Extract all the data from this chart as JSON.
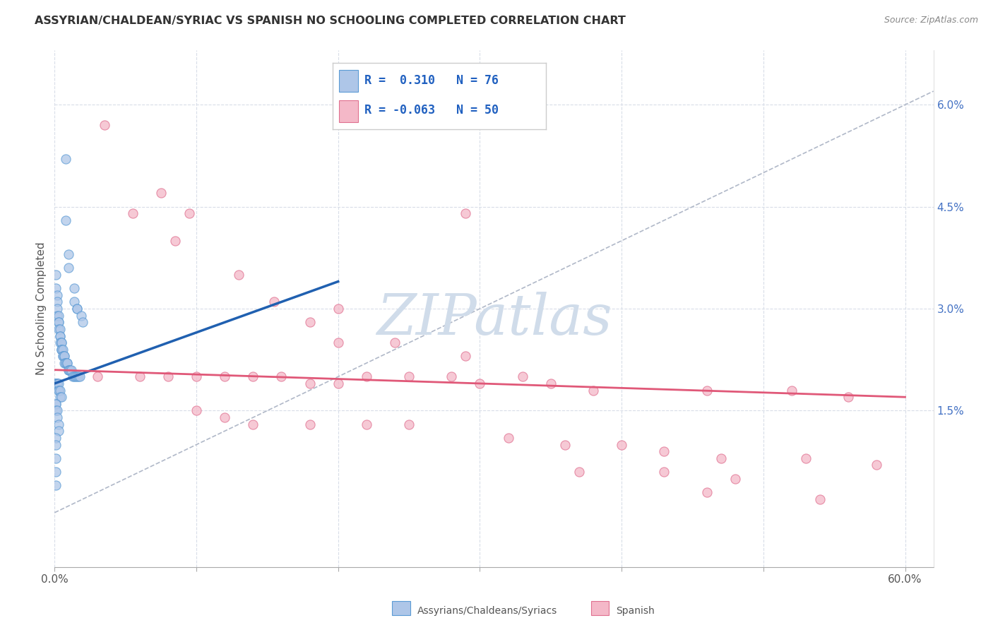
{
  "title": "ASSYRIAN/CHALDEAN/SYRIAC VS SPANISH NO SCHOOLING COMPLETED CORRELATION CHART",
  "source": "Source: ZipAtlas.com",
  "ylabel": "No Schooling Completed",
  "right_yticks": [
    "6.0%",
    "4.5%",
    "3.0%",
    "1.5%"
  ],
  "right_ytick_vals": [
    0.06,
    0.045,
    0.03,
    0.015
  ],
  "xlim": [
    0.0,
    0.62
  ],
  "ylim": [
    -0.008,
    0.068
  ],
  "blue_fill": "#aec6e8",
  "blue_edge": "#5b9bd5",
  "blue_line": "#2060b0",
  "pink_fill": "#f4b8c8",
  "pink_edge": "#e07090",
  "pink_line": "#e05878",
  "diag_color": "#b0b8c8",
  "grid_color": "#d8dde8",
  "assyrian_points": [
    [
      0.008,
      0.052
    ],
    [
      0.008,
      0.043
    ],
    [
      0.01,
      0.038
    ],
    [
      0.01,
      0.036
    ],
    [
      0.014,
      0.033
    ],
    [
      0.014,
      0.031
    ],
    [
      0.016,
      0.03
    ],
    [
      0.016,
      0.03
    ],
    [
      0.019,
      0.029
    ],
    [
      0.02,
      0.028
    ],
    [
      0.001,
      0.035
    ],
    [
      0.001,
      0.033
    ],
    [
      0.002,
      0.032
    ],
    [
      0.002,
      0.031
    ],
    [
      0.002,
      0.03
    ],
    [
      0.002,
      0.029
    ],
    [
      0.003,
      0.029
    ],
    [
      0.003,
      0.028
    ],
    [
      0.003,
      0.028
    ],
    [
      0.003,
      0.027
    ],
    [
      0.004,
      0.027
    ],
    [
      0.004,
      0.026
    ],
    [
      0.004,
      0.026
    ],
    [
      0.004,
      0.025
    ],
    [
      0.005,
      0.025
    ],
    [
      0.005,
      0.025
    ],
    [
      0.005,
      0.024
    ],
    [
      0.005,
      0.024
    ],
    [
      0.005,
      0.024
    ],
    [
      0.006,
      0.024
    ],
    [
      0.006,
      0.023
    ],
    [
      0.006,
      0.023
    ],
    [
      0.007,
      0.023
    ],
    [
      0.007,
      0.023
    ],
    [
      0.007,
      0.022
    ],
    [
      0.008,
      0.022
    ],
    [
      0.008,
      0.022
    ],
    [
      0.009,
      0.022
    ],
    [
      0.009,
      0.022
    ],
    [
      0.01,
      0.021
    ],
    [
      0.01,
      0.021
    ],
    [
      0.011,
      0.021
    ],
    [
      0.011,
      0.021
    ],
    [
      0.012,
      0.021
    ],
    [
      0.013,
      0.02
    ],
    [
      0.014,
      0.02
    ],
    [
      0.015,
      0.02
    ],
    [
      0.016,
      0.02
    ],
    [
      0.017,
      0.02
    ],
    [
      0.018,
      0.02
    ],
    [
      0.001,
      0.019
    ],
    [
      0.001,
      0.019
    ],
    [
      0.001,
      0.019
    ],
    [
      0.001,
      0.019
    ],
    [
      0.002,
      0.019
    ],
    [
      0.002,
      0.019
    ],
    [
      0.002,
      0.019
    ],
    [
      0.002,
      0.019
    ],
    [
      0.003,
      0.019
    ],
    [
      0.003,
      0.018
    ],
    [
      0.003,
      0.018
    ],
    [
      0.004,
      0.018
    ],
    [
      0.004,
      0.017
    ],
    [
      0.005,
      0.017
    ],
    [
      0.001,
      0.016
    ],
    [
      0.001,
      0.016
    ],
    [
      0.001,
      0.015
    ],
    [
      0.002,
      0.015
    ],
    [
      0.002,
      0.014
    ],
    [
      0.003,
      0.013
    ],
    [
      0.003,
      0.012
    ],
    [
      0.001,
      0.011
    ],
    [
      0.001,
      0.01
    ],
    [
      0.001,
      0.008
    ],
    [
      0.001,
      0.006
    ],
    [
      0.001,
      0.004
    ]
  ],
  "spanish_points": [
    [
      0.035,
      0.057
    ],
    [
      0.075,
      0.047
    ],
    [
      0.055,
      0.044
    ],
    [
      0.095,
      0.044
    ],
    [
      0.085,
      0.04
    ],
    [
      0.29,
      0.044
    ],
    [
      0.13,
      0.035
    ],
    [
      0.155,
      0.031
    ],
    [
      0.2,
      0.03
    ],
    [
      0.18,
      0.028
    ],
    [
      0.2,
      0.025
    ],
    [
      0.24,
      0.025
    ],
    [
      0.29,
      0.023
    ],
    [
      0.22,
      0.02
    ],
    [
      0.25,
      0.02
    ],
    [
      0.28,
      0.02
    ],
    [
      0.33,
      0.02
    ],
    [
      0.03,
      0.02
    ],
    [
      0.06,
      0.02
    ],
    [
      0.08,
      0.02
    ],
    [
      0.1,
      0.02
    ],
    [
      0.12,
      0.02
    ],
    [
      0.14,
      0.02
    ],
    [
      0.16,
      0.02
    ],
    [
      0.18,
      0.019
    ],
    [
      0.2,
      0.019
    ],
    [
      0.3,
      0.019
    ],
    [
      0.35,
      0.019
    ],
    [
      0.38,
      0.018
    ],
    [
      0.46,
      0.018
    ],
    [
      0.52,
      0.018
    ],
    [
      0.56,
      0.017
    ],
    [
      0.1,
      0.015
    ],
    [
      0.12,
      0.014
    ],
    [
      0.14,
      0.013
    ],
    [
      0.18,
      0.013
    ],
    [
      0.22,
      0.013
    ],
    [
      0.25,
      0.013
    ],
    [
      0.32,
      0.011
    ],
    [
      0.36,
      0.01
    ],
    [
      0.4,
      0.01
    ],
    [
      0.43,
      0.009
    ],
    [
      0.47,
      0.008
    ],
    [
      0.53,
      0.008
    ],
    [
      0.58,
      0.007
    ],
    [
      0.37,
      0.006
    ],
    [
      0.43,
      0.006
    ],
    [
      0.48,
      0.005
    ],
    [
      0.46,
      0.003
    ],
    [
      0.54,
      0.002
    ]
  ],
  "blue_line_pts": [
    [
      0.0,
      0.019
    ],
    [
      0.2,
      0.034
    ]
  ],
  "pink_line_pts": [
    [
      0.0,
      0.021
    ],
    [
      0.6,
      0.017
    ]
  ]
}
